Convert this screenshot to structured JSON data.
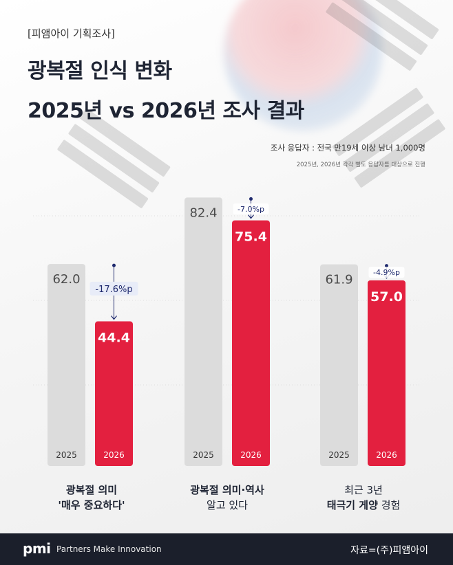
{
  "header": {
    "tag": "[피앰아이 기획조사]",
    "title_line1": "광복절 인식 변화",
    "title_line2": "2025년 vs 2026년 조사 결과",
    "respondents": "조사 응답자 : 전국 만19세 이상 남녀 1,000명",
    "respondents_note": "2025년, 2026년 각각 별도 응답자를 대상으로 진행"
  },
  "colors": {
    "bar_2025": "#dcdcdc",
    "bar_2026": "#e3203f",
    "change_text": "#1f2a6e",
    "change_bg": "#e8ecf8",
    "footer_bg": "#1b1f2b"
  },
  "chart_data": {
    "type": "bar",
    "categories": [
      "광복절 의미 '매우 중요하다'",
      "광복절 의미·역사 알고 있다",
      "최근 3년 태극기 게양 경험"
    ],
    "series": [
      {
        "name": "2025",
        "values": [
          62.0,
          82.4,
          61.9
        ]
      },
      {
        "name": "2026",
        "values": [
          44.4,
          75.4,
          57.0
        ]
      }
    ],
    "value_labels_2025": [
      "62.0",
      "82.4",
      "61.9"
    ],
    "value_labels_2026": [
      "44.4",
      "75.4",
      "57.0"
    ],
    "changes": [
      "-17.6%p",
      "-7.0%p",
      "-4.9%p"
    ],
    "grid": true
  },
  "category_labels": [
    {
      "line1": "광복절 의미",
      "line2": "'매우 중요하다'"
    },
    {
      "line1": "광복절 의미·역사",
      "line2": "알고 있다"
    },
    {
      "line1": "최근 3년",
      "line2_bold": "태극기 게양",
      "line2_rest": " 경험"
    }
  ],
  "footer": {
    "logo": "pmi",
    "tagline": "Partners Make Innovation",
    "source": "자료=(주)피앰아이"
  }
}
